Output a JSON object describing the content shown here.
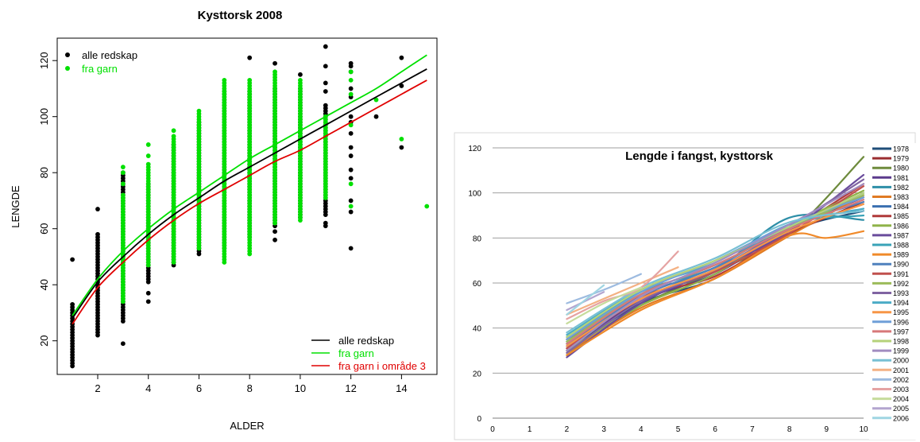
{
  "chart_data": [
    {
      "type": "scatter",
      "title": "Kysttorsk 2008",
      "xlabel": "ALDER",
      "ylabel": "LENGDE",
      "xlim": [
        0.4,
        15.4
      ],
      "ylim": [
        8,
        128
      ],
      "xticks": [
        2,
        4,
        6,
        8,
        10,
        12,
        14
      ],
      "yticks": [
        20,
        40,
        60,
        80,
        100,
        120
      ],
      "grid": false,
      "legend_points": {
        "position": "top-left",
        "entries": [
          {
            "label": "alle redskap",
            "color": "#000000"
          },
          {
            "label": "fra garn",
            "color": "#00e000"
          }
        ]
      },
      "legend_lines": {
        "position": "bottom-right",
        "entries": [
          {
            "label": "alle redskap",
            "color": "#000000"
          },
          {
            "label": "fra garn",
            "color": "#00e000"
          },
          {
            "label": "fra garn i område 3",
            "color": "#e00000"
          }
        ]
      },
      "scatter_series": [
        {
          "name": "alle redskap",
          "color": "#000000",
          "ranges": [
            {
              "x": 1,
              "min": 11,
              "max": 33
            },
            {
              "x": 1,
              "points": [
                49
              ]
            },
            {
              "x": 2,
              "min": 22,
              "max": 58
            },
            {
              "x": 2,
              "points": [
                67
              ]
            },
            {
              "x": 3,
              "min": 27,
              "max": 80
            },
            {
              "x": 3,
              "points": [
                19
              ]
            },
            {
              "x": 4,
              "min": 41,
              "max": 76
            },
            {
              "x": 4,
              "points": [
                34,
                37
              ]
            },
            {
              "x": 5,
              "min": 47,
              "max": 90
            },
            {
              "x": 6,
              "min": 51,
              "max": 98
            },
            {
              "x": 7,
              "min": 53,
              "max": 109
            },
            {
              "x": 8,
              "min": 57,
              "max": 109
            },
            {
              "x": 8,
              "points": [
                121
              ]
            },
            {
              "x": 9,
              "min": 61,
              "max": 110
            },
            {
              "x": 9,
              "points": [
                56,
                59,
                119
              ]
            },
            {
              "x": 10,
              "min": 64,
              "max": 110
            },
            {
              "x": 10,
              "points": [
                115
              ]
            },
            {
              "x": 11,
              "min": 65,
              "max": 104
            },
            {
              "x": 11,
              "points": [
                61,
                62,
                109,
                112,
                118,
                125
              ]
            },
            {
              "x": 12,
              "points": [
                53,
                66,
                70,
                78,
                81,
                86,
                89,
                94,
                98,
                100,
                107,
                110,
                116,
                118,
                119
              ]
            },
            {
              "x": 13,
              "points": [
                100
              ]
            },
            {
              "x": 14,
              "points": [
                89,
                111,
                121
              ]
            }
          ]
        },
        {
          "name": "fra garn",
          "color": "#00e000",
          "ranges": [
            {
              "x": 3,
              "min": 34,
              "max": 72
            },
            {
              "x": 3,
              "points": [
                76,
                80,
                82
              ]
            },
            {
              "x": 4,
              "min": 47,
              "max": 83
            },
            {
              "x": 4,
              "points": [
                86,
                90
              ]
            },
            {
              "x": 5,
              "min": 48,
              "max": 93
            },
            {
              "x": 5,
              "points": [
                95
              ]
            },
            {
              "x": 6,
              "min": 53,
              "max": 102
            },
            {
              "x": 7,
              "min": 48,
              "max": 113
            },
            {
              "x": 8,
              "min": 51,
              "max": 113
            },
            {
              "x": 9,
              "min": 62,
              "max": 116
            },
            {
              "x": 10,
              "min": 63,
              "max": 113
            },
            {
              "x": 11,
              "min": 71,
              "max": 100
            },
            {
              "x": 12,
              "points": [
                68,
                76,
                97,
                108,
                113,
                116
              ]
            },
            {
              "x": 13,
              "points": [
                106
              ]
            },
            {
              "x": 14,
              "points": [
                92
              ]
            },
            {
              "x": 15,
              "points": [
                68
              ]
            }
          ]
        }
      ],
      "curves": [
        {
          "name": "fra garn",
          "color": "#00e000",
          "x": [
            1,
            2,
            3,
            4,
            5,
            6,
            7,
            8,
            9,
            10,
            11,
            12,
            13,
            14,
            15
          ],
          "y": [
            29,
            42,
            52,
            60,
            67,
            73,
            79,
            85,
            90,
            95,
            100,
            105,
            110,
            116,
            122
          ]
        },
        {
          "name": "alle redskap",
          "color": "#000000",
          "x": [
            1,
            2,
            3,
            4,
            5,
            6,
            7,
            8,
            9,
            10,
            11,
            12,
            13,
            14,
            15
          ],
          "y": [
            28,
            41,
            50,
            58,
            65,
            71,
            77,
            82,
            87,
            92,
            97,
            102,
            107,
            112,
            117
          ]
        },
        {
          "name": "fra garn i område 3",
          "color": "#e00000",
          "x": [
            1,
            2,
            3,
            4,
            5,
            6,
            7,
            8,
            9,
            10,
            11,
            12,
            13,
            14,
            15
          ],
          "y": [
            26,
            39,
            48,
            56,
            63,
            69,
            74,
            79,
            84,
            88,
            93,
            98,
            103,
            108,
            113
          ]
        }
      ]
    },
    {
      "type": "line",
      "title": "Lengde i fangst, kysttorsk",
      "xlim": [
        0,
        10
      ],
      "ylim": [
        0,
        120
      ],
      "xticks": [
        0,
        1,
        2,
        3,
        4,
        5,
        6,
        7,
        8,
        9,
        10
      ],
      "yticks": [
        0,
        20,
        40,
        60,
        80,
        100,
        120
      ],
      "grid": "horizontal",
      "legend_position": "right",
      "series": [
        {
          "name": "1978",
          "color": "#1f4e79",
          "x": [
            2,
            4,
            6,
            8,
            10
          ],
          "y": [
            30,
            51,
            62,
            83,
            92
          ]
        },
        {
          "name": "1979",
          "color": "#9b2d30",
          "x": [
            2,
            4,
            6,
            8,
            10
          ],
          "y": [
            33,
            52,
            66,
            82,
            96
          ]
        },
        {
          "name": "1980",
          "color": "#6e8b3d",
          "x": [
            2,
            4,
            6,
            8,
            10
          ],
          "y": [
            28,
            50,
            65,
            82,
            116
          ]
        },
        {
          "name": "1981",
          "color": "#5b3a8c",
          "x": [
            2,
            4,
            6,
            8,
            10
          ],
          "y": [
            31,
            52,
            64,
            84,
            98
          ]
        },
        {
          "name": "1982",
          "color": "#2e8fa8",
          "x": [
            2,
            4,
            6,
            8,
            10
          ],
          "y": [
            34,
            55,
            66,
            89,
            88
          ]
        },
        {
          "name": "1983",
          "color": "#e07b24",
          "x": [
            2,
            4,
            6,
            8,
            10
          ],
          "y": [
            29,
            49,
            62,
            81,
            99
          ]
        },
        {
          "name": "1984",
          "color": "#3a6fb0",
          "x": [
            2,
            4,
            6,
            8,
            10
          ],
          "y": [
            32,
            53,
            65,
            84,
            100
          ]
        },
        {
          "name": "1985",
          "color": "#b03a3a",
          "x": [
            2,
            4,
            6,
            8,
            10
          ],
          "y": [
            35,
            54,
            63,
            83,
            104
          ]
        },
        {
          "name": "1986",
          "color": "#8fb34a",
          "x": [
            2,
            4,
            6,
            8,
            10
          ],
          "y": [
            30,
            50,
            64,
            85,
            101
          ]
        },
        {
          "name": "1987",
          "color": "#6a4c9c",
          "x": [
            2,
            4,
            6,
            8,
            10
          ],
          "y": [
            27,
            51,
            66,
            83,
            108
          ]
        },
        {
          "name": "1988",
          "color": "#3aa3b8",
          "x": [
            2,
            4,
            6,
            8,
            10
          ],
          "y": [
            36,
            56,
            67,
            86,
            90
          ]
        },
        {
          "name": "1989",
          "color": "#f08a2a",
          "x": [
            2,
            4,
            6,
            8,
            9,
            10
          ],
          "y": [
            28,
            48,
            62,
            81,
            80,
            83
          ]
        },
        {
          "name": "1990",
          "color": "#4f81bd",
          "x": [
            2,
            4,
            6,
            8,
            10
          ],
          "y": [
            33,
            54,
            67,
            85,
            96
          ]
        },
        {
          "name": "1991",
          "color": "#c0504d",
          "x": [
            2,
            4,
            6,
            8,
            10
          ],
          "y": [
            31,
            53,
            65,
            82,
            103
          ]
        },
        {
          "name": "1992",
          "color": "#9bbb59",
          "x": [
            2,
            4,
            6,
            8,
            10
          ],
          "y": [
            34,
            55,
            68,
            84,
            99
          ]
        },
        {
          "name": "1993",
          "color": "#8064a2",
          "x": [
            2,
            4,
            6,
            8,
            10
          ],
          "y": [
            29,
            52,
            66,
            85,
            106
          ]
        },
        {
          "name": "1994",
          "color": "#4bacc6",
          "x": [
            2,
            4,
            6,
            8,
            10
          ],
          "y": [
            37,
            57,
            69,
            86,
            93
          ]
        },
        {
          "name": "1995",
          "color": "#f79646",
          "x": [
            2,
            4,
            6,
            8,
            10
          ],
          "y": [
            32,
            53,
            66,
            83,
            95
          ]
        },
        {
          "name": "1996",
          "color": "#6f9fd8",
          "x": [
            2,
            4,
            6,
            8,
            10
          ],
          "y": [
            35,
            56,
            70,
            86,
            98
          ]
        },
        {
          "name": "1997",
          "color": "#d7797a",
          "x": [
            2,
            4,
            6,
            8,
            10
          ],
          "y": [
            33,
            55,
            68,
            84,
            97
          ]
        },
        {
          "name": "1998",
          "color": "#b5d27a",
          "x": [
            2,
            4,
            6,
            8,
            10
          ],
          "y": [
            36,
            57,
            70,
            85,
            100
          ]
        },
        {
          "name": "1999",
          "color": "#a18cc0",
          "x": [
            2,
            4,
            6,
            8,
            10
          ],
          "y": [
            30,
            54,
            69,
            86,
            104
          ]
        },
        {
          "name": "2000",
          "color": "#78c0d4",
          "x": [
            2,
            4,
            6,
            8,
            10
          ],
          "y": [
            38,
            58,
            71,
            87,
            92
          ]
        },
        {
          "name": "2001",
          "color": "#f4b183",
          "x": [
            2,
            3,
            4,
            5
          ],
          "y": [
            46,
            53,
            60,
            67
          ]
        },
        {
          "name": "2002",
          "color": "#9dbbe0",
          "x": [
            2,
            3,
            4
          ],
          "y": [
            51,
            57,
            64
          ]
        },
        {
          "name": "2003",
          "color": "#e5a3a3",
          "x": [
            2,
            3,
            4,
            5
          ],
          "y": [
            44,
            52,
            58,
            74
          ]
        },
        {
          "name": "2004",
          "color": "#c6dc9c",
          "x": [
            2,
            3,
            4
          ],
          "y": [
            42,
            51,
            58
          ]
        },
        {
          "name": "2005",
          "color": "#b3a5cf",
          "x": [
            2,
            3
          ],
          "y": [
            48,
            56
          ]
        },
        {
          "name": "2006",
          "color": "#9fd5e2",
          "x": [
            2,
            3
          ],
          "y": [
            46,
            59
          ]
        }
      ]
    }
  ]
}
